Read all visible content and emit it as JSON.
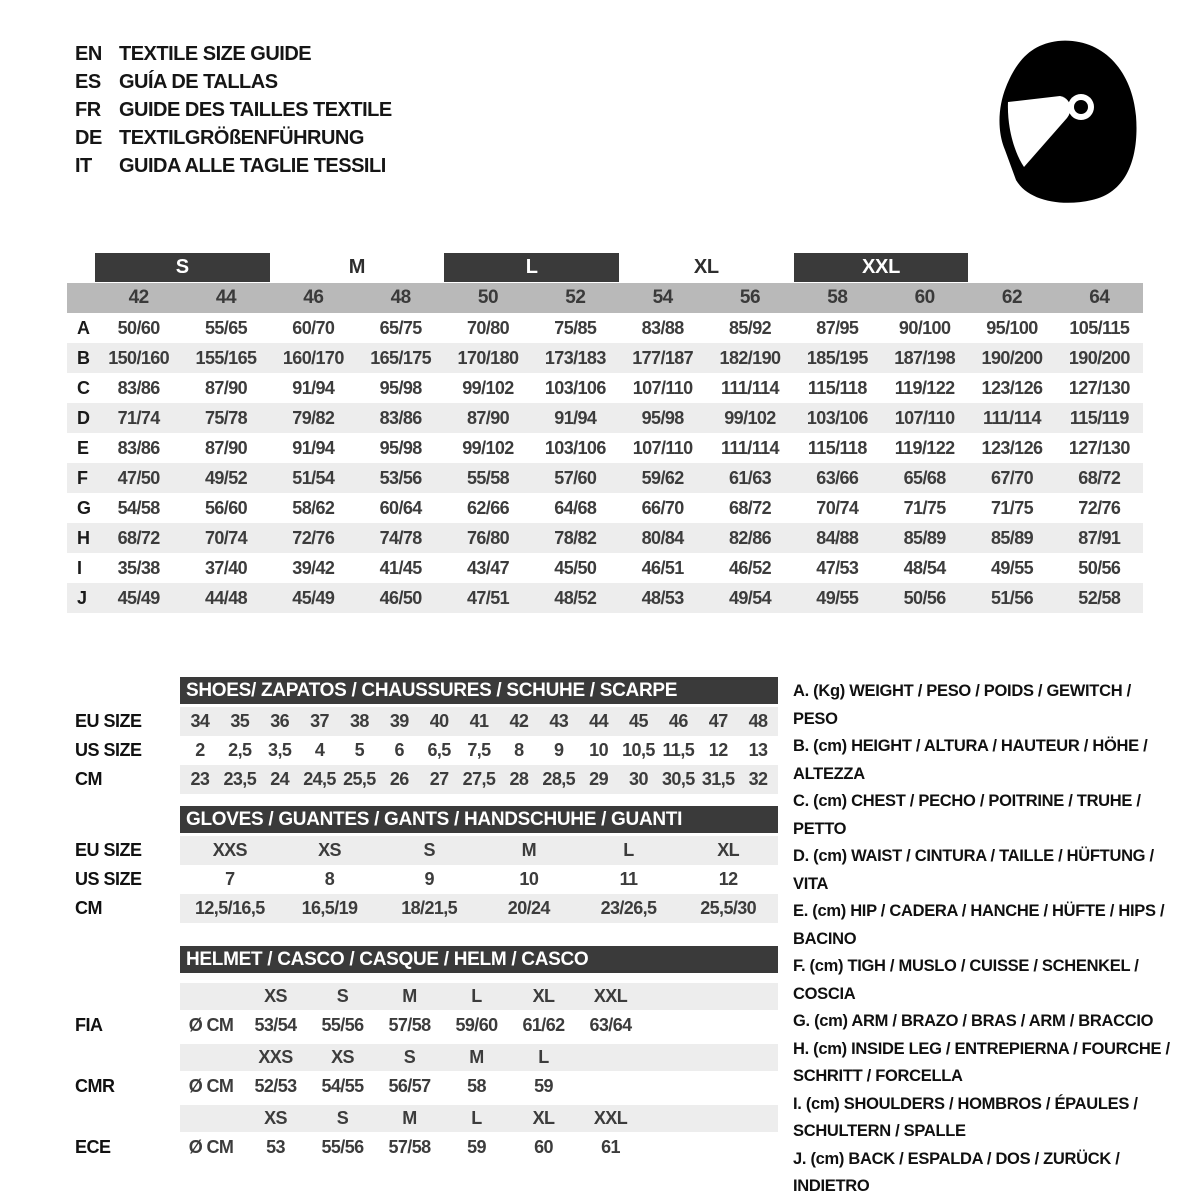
{
  "header": {
    "languages": [
      {
        "code": "EN",
        "label": "TEXTILE SIZE GUIDE"
      },
      {
        "code": "ES",
        "label": "GUÍA DE TALLAS"
      },
      {
        "code": "FR",
        "label": "GUIDE DES TAILLES TEXTILE"
      },
      {
        "code": "DE",
        "label": "TEXTILGRÖßENFÜHRUNG"
      },
      {
        "code": "IT",
        "label": "GUIDA ALLE TAGLIE TESSILI"
      }
    ],
    "helmet_icon": "racing-helmet-icon"
  },
  "colors": {
    "bar_dark": "#3a3a3a",
    "header_gray": "#b9b9b9",
    "stripe_gray": "#ededed",
    "text_dark": "#3c3c3c"
  },
  "main_table": {
    "size_groups": [
      {
        "label": "S",
        "bar": true
      },
      {
        "label": "M",
        "bar": false
      },
      {
        "label": "L",
        "bar": true
      },
      {
        "label": "XL",
        "bar": false
      },
      {
        "label": "XXL",
        "bar": true
      }
    ],
    "columns": [
      "42",
      "44",
      "46",
      "48",
      "50",
      "52",
      "54",
      "56",
      "58",
      "60",
      "62",
      "64"
    ],
    "rows": [
      {
        "label": "A",
        "values": [
          "50/60",
          "55/65",
          "60/70",
          "65/75",
          "70/80",
          "75/85",
          "83/88",
          "85/92",
          "87/95",
          "90/100",
          "95/100",
          "105/115"
        ]
      },
      {
        "label": "B",
        "values": [
          "150/160",
          "155/165",
          "160/170",
          "165/175",
          "170/180",
          "173/183",
          "177/187",
          "182/190",
          "185/195",
          "187/198",
          "190/200",
          "190/200"
        ]
      },
      {
        "label": "C",
        "values": [
          "83/86",
          "87/90",
          "91/94",
          "95/98",
          "99/102",
          "103/106",
          "107/110",
          "111/114",
          "115/118",
          "119/122",
          "123/126",
          "127/130"
        ]
      },
      {
        "label": "D",
        "values": [
          "71/74",
          "75/78",
          "79/82",
          "83/86",
          "87/90",
          "91/94",
          "95/98",
          "99/102",
          "103/106",
          "107/110",
          "111/114",
          "115/119"
        ]
      },
      {
        "label": "E",
        "values": [
          "83/86",
          "87/90",
          "91/94",
          "95/98",
          "99/102",
          "103/106",
          "107/110",
          "111/114",
          "115/118",
          "119/122",
          "123/126",
          "127/130"
        ]
      },
      {
        "label": "F",
        "values": [
          "47/50",
          "49/52",
          "51/54",
          "53/56",
          "55/58",
          "57/60",
          "59/62",
          "61/63",
          "63/66",
          "65/68",
          "67/70",
          "68/72"
        ]
      },
      {
        "label": "G",
        "values": [
          "54/58",
          "56/60",
          "58/62",
          "60/64",
          "62/66",
          "64/68",
          "66/70",
          "68/72",
          "70/74",
          "71/75",
          "71/75",
          "72/76"
        ]
      },
      {
        "label": "H",
        "values": [
          "68/72",
          "70/74",
          "72/76",
          "74/78",
          "76/80",
          "78/82",
          "80/84",
          "82/86",
          "84/88",
          "85/89",
          "85/89",
          "87/91"
        ]
      },
      {
        "label": "I",
        "values": [
          "35/38",
          "37/40",
          "39/42",
          "41/45",
          "43/47",
          "45/50",
          "46/51",
          "46/52",
          "47/53",
          "48/54",
          "49/55",
          "50/56"
        ]
      },
      {
        "label": "J",
        "values": [
          "45/49",
          "44/48",
          "45/49",
          "46/50",
          "47/51",
          "48/52",
          "48/53",
          "49/54",
          "49/55",
          "50/56",
          "51/56",
          "52/58"
        ]
      }
    ]
  },
  "shoes": {
    "title": "SHOES/ ZAPATOS / CHAUSSURES / SCHUHE / SCARPE",
    "rows": [
      {
        "label": "EU SIZE",
        "values": [
          "34",
          "35",
          "36",
          "37",
          "38",
          "39",
          "40",
          "41",
          "42",
          "43",
          "44",
          "45",
          "46",
          "47",
          "48"
        ]
      },
      {
        "label": "US SIZE",
        "values": [
          "2",
          "2,5",
          "3,5",
          "4",
          "5",
          "6",
          "6,5",
          "7,5",
          "8",
          "9",
          "10",
          "10,5",
          "11,5",
          "12",
          "13"
        ]
      },
      {
        "label": "CM",
        "values": [
          "23",
          "23,5",
          "24",
          "24,5",
          "25,5",
          "26",
          "27",
          "27,5",
          "28",
          "28,5",
          "29",
          "30",
          "30,5",
          "31,5",
          "32"
        ]
      }
    ]
  },
  "gloves": {
    "title": "GLOVES / GUANTES / GANTS / HANDSCHUHE / GUANTI",
    "rows": [
      {
        "label": "EU SIZE",
        "values": [
          "XXS",
          "XS",
          "S",
          "M",
          "L",
          "XL"
        ]
      },
      {
        "label": "US SIZE",
        "values": [
          "7",
          "8",
          "9",
          "10",
          "11",
          "12"
        ]
      },
      {
        "label": "CM",
        "values": [
          "12,5/16,5",
          "16,5/19",
          "18/21,5",
          "20/24",
          "23/26,5",
          "25,5/30"
        ]
      }
    ]
  },
  "helmet": {
    "title": "HELMET / CASCO / CASQUE / HELM / CASCO",
    "sections": [
      {
        "label": "FIA",
        "unit": "Ø CM",
        "sizes": [
          "XS",
          "S",
          "M",
          "L",
          "XL",
          "XXL"
        ],
        "values": [
          "53/54",
          "55/56",
          "57/58",
          "59/60",
          "61/62",
          "63/64"
        ]
      },
      {
        "label": "CMR",
        "unit": "Ø CM",
        "sizes": [
          "XXS",
          "XS",
          "S",
          "M",
          "L"
        ],
        "values": [
          "52/53",
          "54/55",
          "56/57",
          "58",
          "59"
        ]
      },
      {
        "label": "ECE",
        "unit": "Ø CM",
        "sizes": [
          "XS",
          "S",
          "M",
          "L",
          "XL",
          "XXL"
        ],
        "values": [
          "53",
          "55/56",
          "57/58",
          "59",
          "60",
          "61"
        ]
      }
    ]
  },
  "legend": {
    "items": [
      "A. (Kg) WEIGHT / PESO / POIDS / GEWITCH / PESO",
      "B. (cm) HEIGHT / ALTURA / HAUTEUR / HÖHE / ALTEZZA",
      "C. (cm) CHEST / PECHO / POITRINE / TRUHE / PETTO",
      "D. (cm) WAIST / CINTURA / TAILLE / HÜFTUNG / VITA",
      "E. (cm) HIP / CADERA / HANCHE / HÜFTE / HIPS /  BACINO",
      "F. (cm) TIGH / MUSLO / CUISSE / SCHENKEL / COSCIA",
      "G. (cm) ARM  / BRAZO / BRAS / ARM / BRACCIO",
      "H. (cm) INSIDE LEG / ENTREPIERNA / FOURCHE / SCHRITT / FORCELLA",
      "I.  (cm) SHOULDERS / HOMBROS / ÉPAULES / SCHULTERN / SPALLE",
      "J. (cm) BACK / ESPALDA / DOS / ZURÜCK / INDIETRO"
    ]
  }
}
